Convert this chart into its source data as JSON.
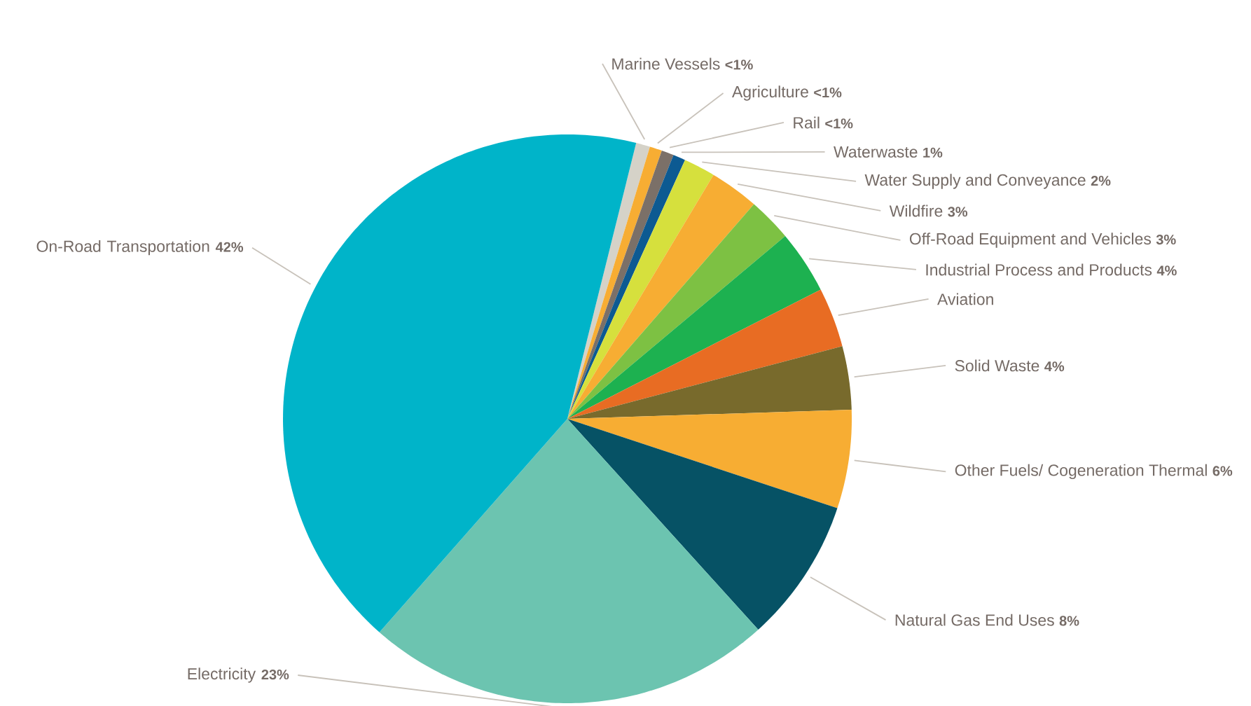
{
  "chart_data": {
    "type": "pie",
    "categories": [
      "Marine Vessels",
      "Agriculture",
      "Rail",
      "Waterwaste",
      "Water Supply and Conveyance",
      "Wildfire",
      "Off-Road Equipment and Vehicles",
      "Industrial Process and Products",
      "Aviation",
      "Solid Waste",
      "Other Fuels/ Cogeneration Thermal",
      "Natural Gas End Uses",
      "Electricity",
      "On-Road Transportation"
    ],
    "values": [
      0.8,
      0.7,
      0.7,
      0.7,
      1.8,
      2.8,
      2.5,
      3.6,
      3.4,
      3.6,
      5.6,
      8.2,
      23.2,
      42.4
    ],
    "value_labels": [
      "<1%",
      "<1%",
      "<1%",
      "1%",
      "2%",
      "3%",
      "3%",
      "4%",
      null,
      "4%",
      "6%",
      "8%",
      "23%",
      "42%"
    ],
    "colors": [
      "#d5d2c8",
      "#f7ad33",
      "#7b7068",
      "#0c5a92",
      "#d6e03d",
      "#f7ad33",
      "#7dc143",
      "#1db150",
      "#e86c23",
      "#786a2c",
      "#f7ad33",
      "#065265",
      "#6cc4b0",
      "#00b4c9"
    ]
  }
}
